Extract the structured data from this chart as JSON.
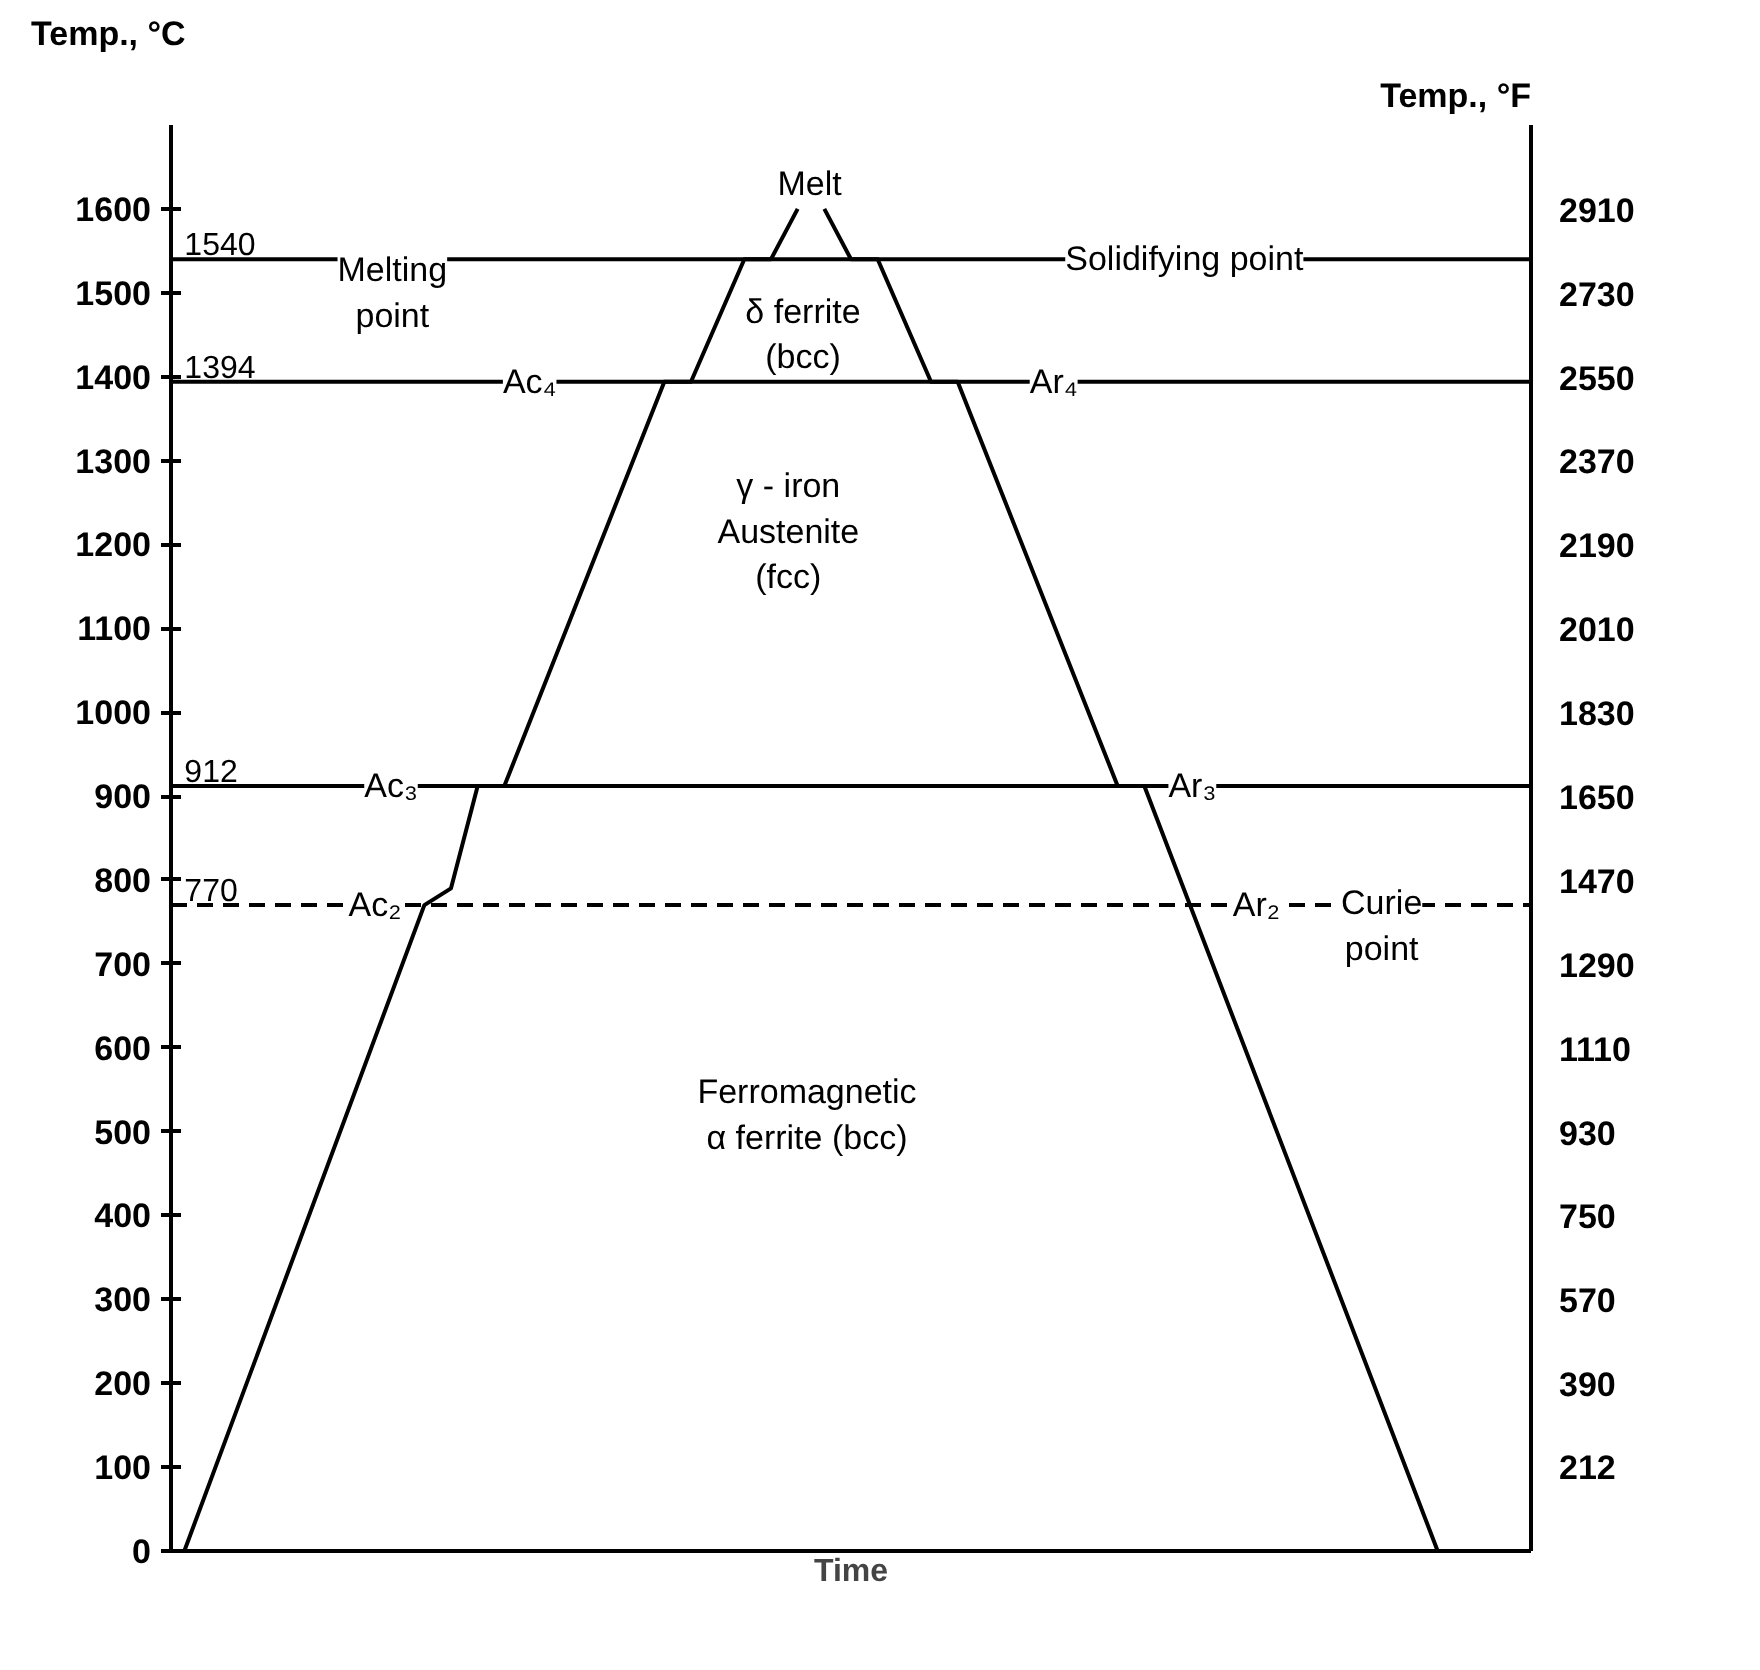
{
  "chart_data": {
    "type": "line",
    "xlabel": "Time",
    "ylabel": "Temp., °C",
    "y2label": "Temp., °F",
    "categories": [
      null,
      null,
      null,
      null,
      null,
      null,
      null,
      null,
      null,
      null,
      null,
      null,
      null,
      null,
      null,
      null,
      null,
      null,
      null,
      null,
      null,
      null,
      null,
      null,
      null,
      null,
      null,
      null,
      null,
      null,
      null,
      null,
      null,
      null,
      null,
      null,
      null,
      null,
      null,
      null,
      null,
      null,
      null,
      null,
      null,
      null,
      null,
      null,
      null,
      null,
      null
    ],
    "ylim": [
      0,
      1700
    ],
    "yticks": [
      0,
      100,
      200,
      300,
      400,
      500,
      600,
      700,
      800,
      900,
      1000,
      1100,
      1200,
      1300,
      1400,
      1500,
      1600
    ],
    "y2lim": [
      32,
      3092
    ],
    "y2ticks": [
      212,
      390,
      570,
      750,
      930,
      1110,
      1290,
      1470,
      1650,
      1830,
      2010,
      2190,
      2370,
      2550,
      2730,
      2910
    ],
    "grid": false,
    "line_style": "solid",
    "series": [
      {
        "color": "#000000",
        "values": [
          0,
          null,
          null,
          null,
          null,
          null,
          null,
          null,
          null,
          770,
          790,
          912,
          912,
          null,
          null,
          null,
          null,
          null,
          1394,
          1394,
          null,
          1540,
          1540,
          1600,
          null,
          null,
          null,
          null,
          null,
          null,
          null,
          null,
          null,
          null,
          null,
          null,
          null,
          null,
          null,
          null,
          null,
          null,
          null,
          null,
          null,
          null,
          null,
          null,
          null,
          null,
          null
        ]
      },
      {
        "color": "#000000",
        "values": [
          null,
          null,
          null,
          null,
          null,
          null,
          null,
          null,
          null,
          null,
          null,
          null,
          null,
          null,
          null,
          null,
          null,
          null,
          null,
          null,
          null,
          null,
          null,
          null,
          1600,
          1540,
          1540,
          null,
          1394,
          1394,
          null,
          null,
          null,
          null,
          null,
          912,
          912,
          null,
          null,
          null,
          null,
          null,
          null,
          null,
          null,
          null,
          null,
          0,
          null,
          null,
          null
        ]
      }
    ],
    "ref_lines": [
      {
        "axis": "y",
        "value": 1540,
        "label": "1540",
        "color": "#000000",
        "line_style": "solid"
      },
      {
        "axis": "y",
        "value": 1394,
        "label": "1394",
        "color": "#000000",
        "line_style": "solid"
      },
      {
        "axis": "y",
        "value": 912,
        "label": "912",
        "color": "#000000",
        "line_style": "solid"
      },
      {
        "axis": "y",
        "value": 770,
        "label": "770",
        "color": "#000000",
        "line_style": "dashed"
      }
    ],
    "annotations": [
      "Melt",
      "Melting\npoint",
      {
        "text": "Solidifying point",
        "y": 1540
      },
      "δ ferrite\n(bcc)",
      "γ - iron\nAustenite\n(fcc)",
      {
        "text": "Ac₄",
        "y": 1394
      },
      {
        "text": "Ar₄",
        "y": 1394
      },
      {
        "text": "Ac₃",
        "y": 912
      },
      {
        "text": "Ar₃",
        "y": 912
      },
      {
        "text": "Ac₂",
        "y": 770
      },
      {
        "text": "Ar₂",
        "y": 770
      },
      "Curie\npoint",
      "Ferromagnetic\nα ferrite (bcc)"
    ]
  }
}
